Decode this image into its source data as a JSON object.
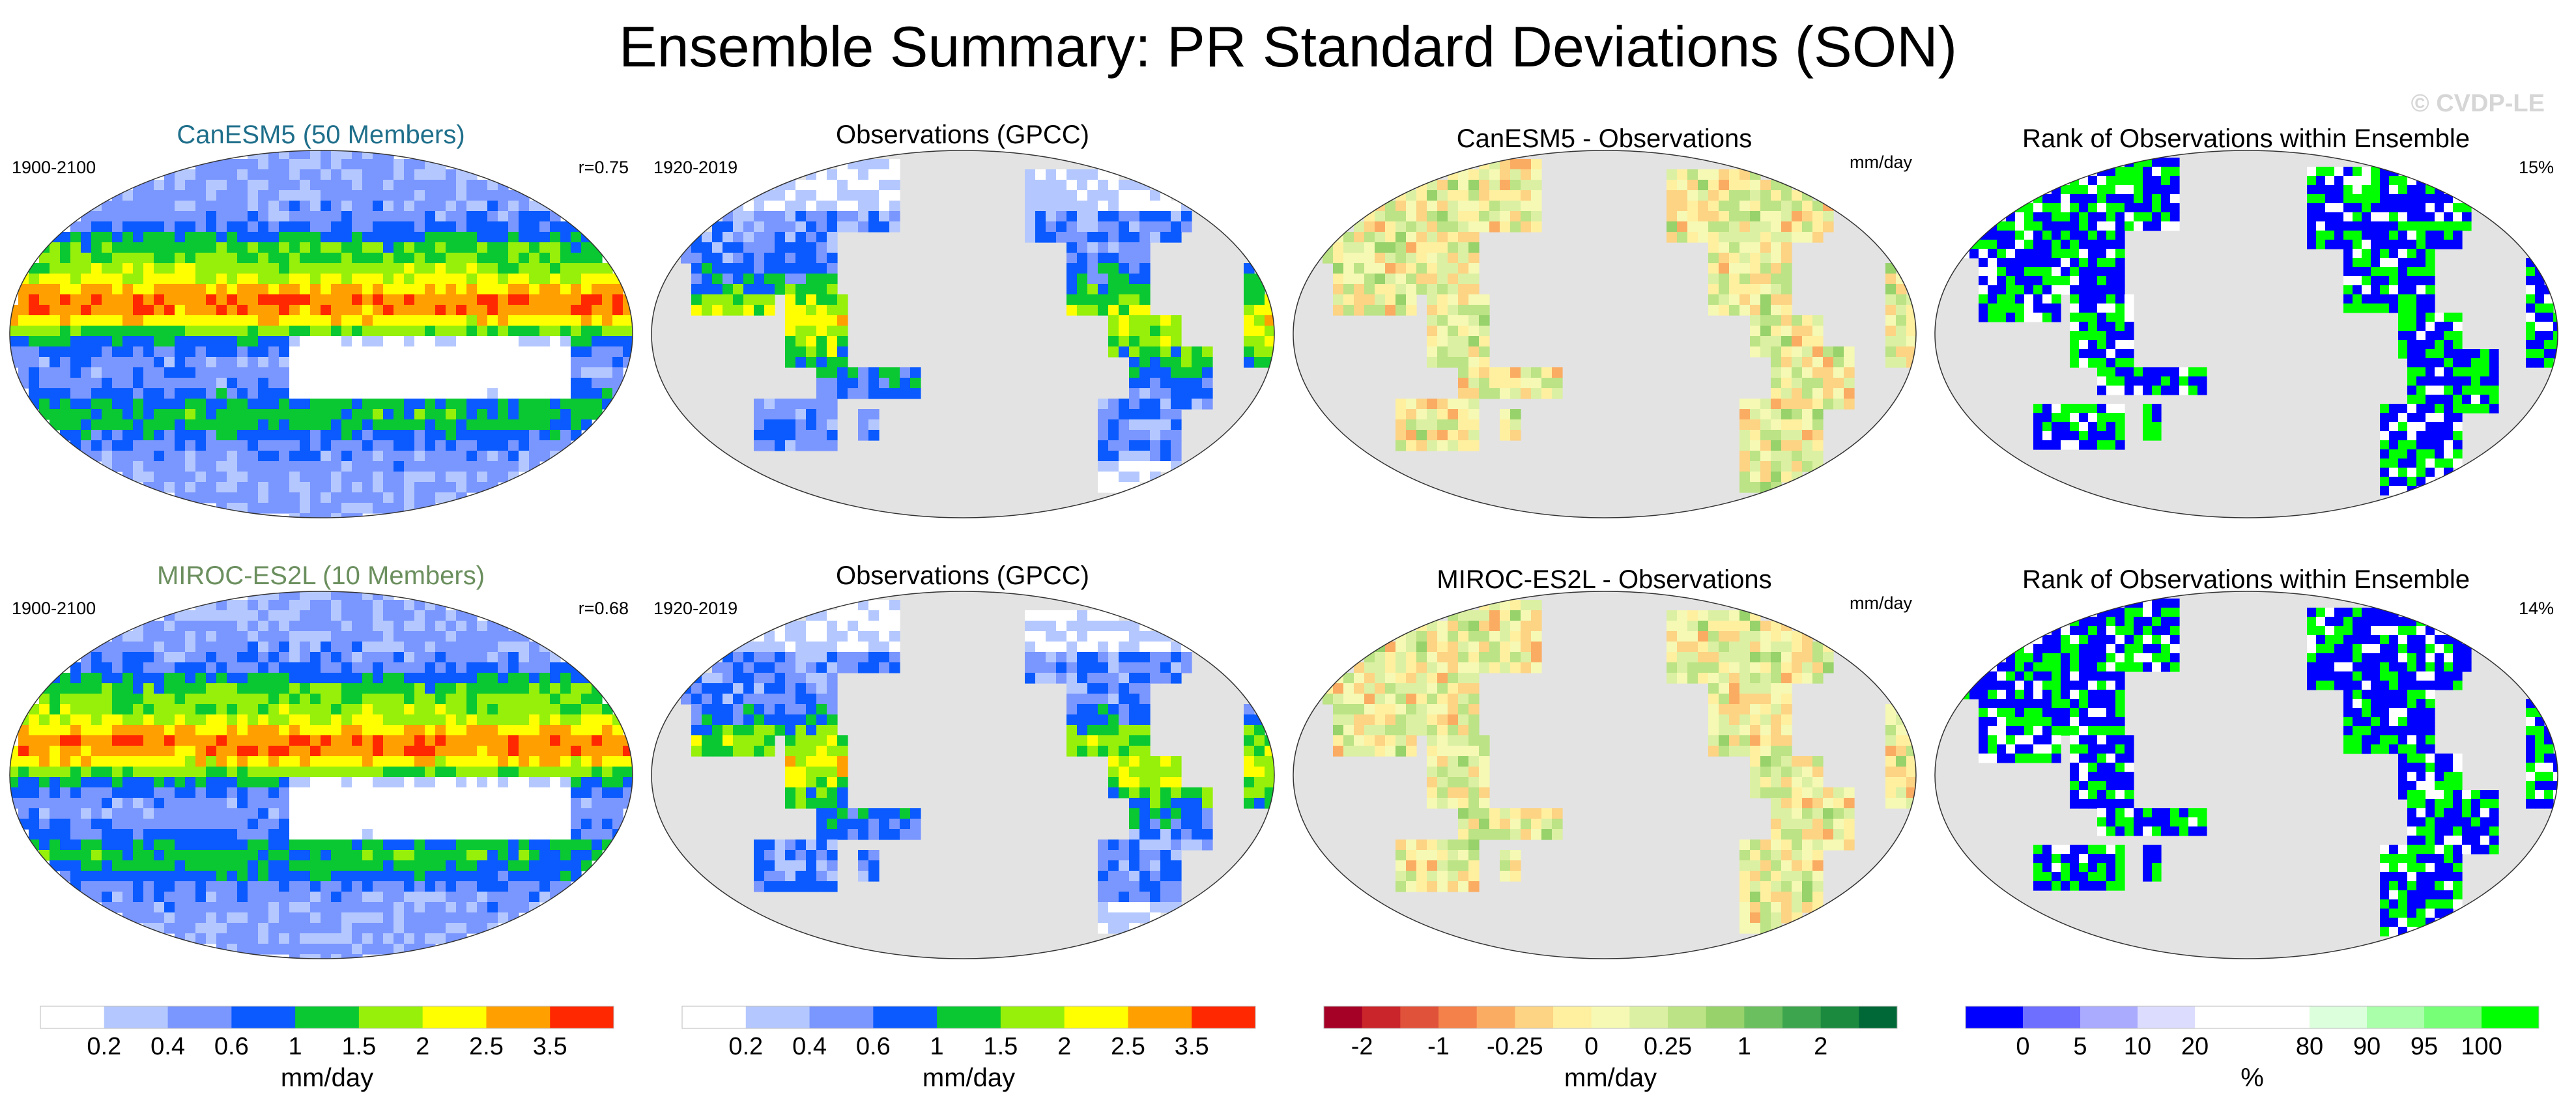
{
  "title": "Ensemble Summary: PR Standard Deviations (SON)",
  "watermark": "© CVDP-LE",
  "colors": {
    "ocean_gray": "#e3e3e3",
    "land_gray": "#ebebeb",
    "canesm_title": "#1f6f8b",
    "miroc_title": "#6b8f5e"
  },
  "panels": [
    {
      "title": "CanESM5 (50 Members)",
      "title_color": "#1f6f8b",
      "left": "1900-2100",
      "right": "r=0.75",
      "kind": "model_full",
      "seed": 11
    },
    {
      "title": "Observations (GPCC)",
      "title_color": "#000000",
      "left": "1920-2019",
      "right": "",
      "kind": "obs_land",
      "seed": 23
    },
    {
      "title": "CanESM5 - Observations",
      "title_color": "#000000",
      "left": "",
      "right": "mm/day",
      "kind": "diff_land",
      "seed": 37
    },
    {
      "title": "Rank of Observations within Ensemble",
      "title_color": "#000000",
      "left": "",
      "right": "15%",
      "kind": "rank_land",
      "seed": 41
    },
    {
      "title": "MIROC-ES2L (10 Members)",
      "title_color": "#6b8f5e",
      "left": "1900-2100",
      "right": "r=0.68",
      "kind": "model_full",
      "seed": 53
    },
    {
      "title": "Observations (GPCC)",
      "title_color": "#000000",
      "left": "1920-2019",
      "right": "",
      "kind": "obs_land",
      "seed": 67
    },
    {
      "title": "MIROC-ES2L - Observations",
      "title_color": "#000000",
      "left": "",
      "right": "mm/day",
      "kind": "diff_land",
      "seed": 71
    },
    {
      "title": "Rank of Observations within Ensemble",
      "title_color": "#000000",
      "left": "",
      "right": "14%",
      "kind": "rank_land",
      "seed": 83
    }
  ],
  "colorbars": [
    {
      "label": "mm/day",
      "colors": [
        "#ffffff",
        "#b4c8ff",
        "#7a96ff",
        "#0a5aff",
        "#0ac832",
        "#96f00a",
        "#ffff00",
        "#ffa000",
        "#ff2800"
      ],
      "ticks": [
        "0.2",
        "0.4",
        "0.6",
        "1",
        "1.5",
        "2",
        "2.5",
        "3.5"
      ]
    },
    {
      "label": "mm/day",
      "colors": [
        "#ffffff",
        "#b4c8ff",
        "#7a96ff",
        "#0a5aff",
        "#0ac832",
        "#96f00a",
        "#ffff00",
        "#ffa000",
        "#ff2800"
      ],
      "ticks": [
        "0.2",
        "0.4",
        "0.6",
        "1",
        "1.5",
        "2",
        "2.5",
        "3.5"
      ]
    },
    {
      "label": "mm/day",
      "colors": [
        "#a50026",
        "#c9252b",
        "#e1523a",
        "#f4804a",
        "#fbac63",
        "#fdd384",
        "#fff0a0",
        "#f5f9b4",
        "#dcf0a3",
        "#bce385",
        "#97d26b",
        "#6bbf5e",
        "#3ea54f",
        "#1b8a3f",
        "#006837"
      ],
      "ticks": [
        "-2",
        "-1",
        "-0.25",
        "0",
        "0.25",
        "1",
        "2"
      ],
      "tick_boundaries": [
        1,
        3,
        5,
        7,
        9,
        11,
        13
      ]
    },
    {
      "label": "%",
      "colors": [
        "#0000ff",
        "#6e6eff",
        "#aaaaff",
        "#dcdcff",
        "#ffffff",
        "#ffffff",
        "#dcffdc",
        "#aaffaa",
        "#78ff78",
        "#00ff00"
      ],
      "ticks": [
        "0",
        "5",
        "10",
        "20",
        "80",
        "90",
        "95",
        "100"
      ],
      "tick_boundaries": [
        1,
        2,
        3,
        4,
        6,
        7,
        8,
        9
      ]
    }
  ]
}
